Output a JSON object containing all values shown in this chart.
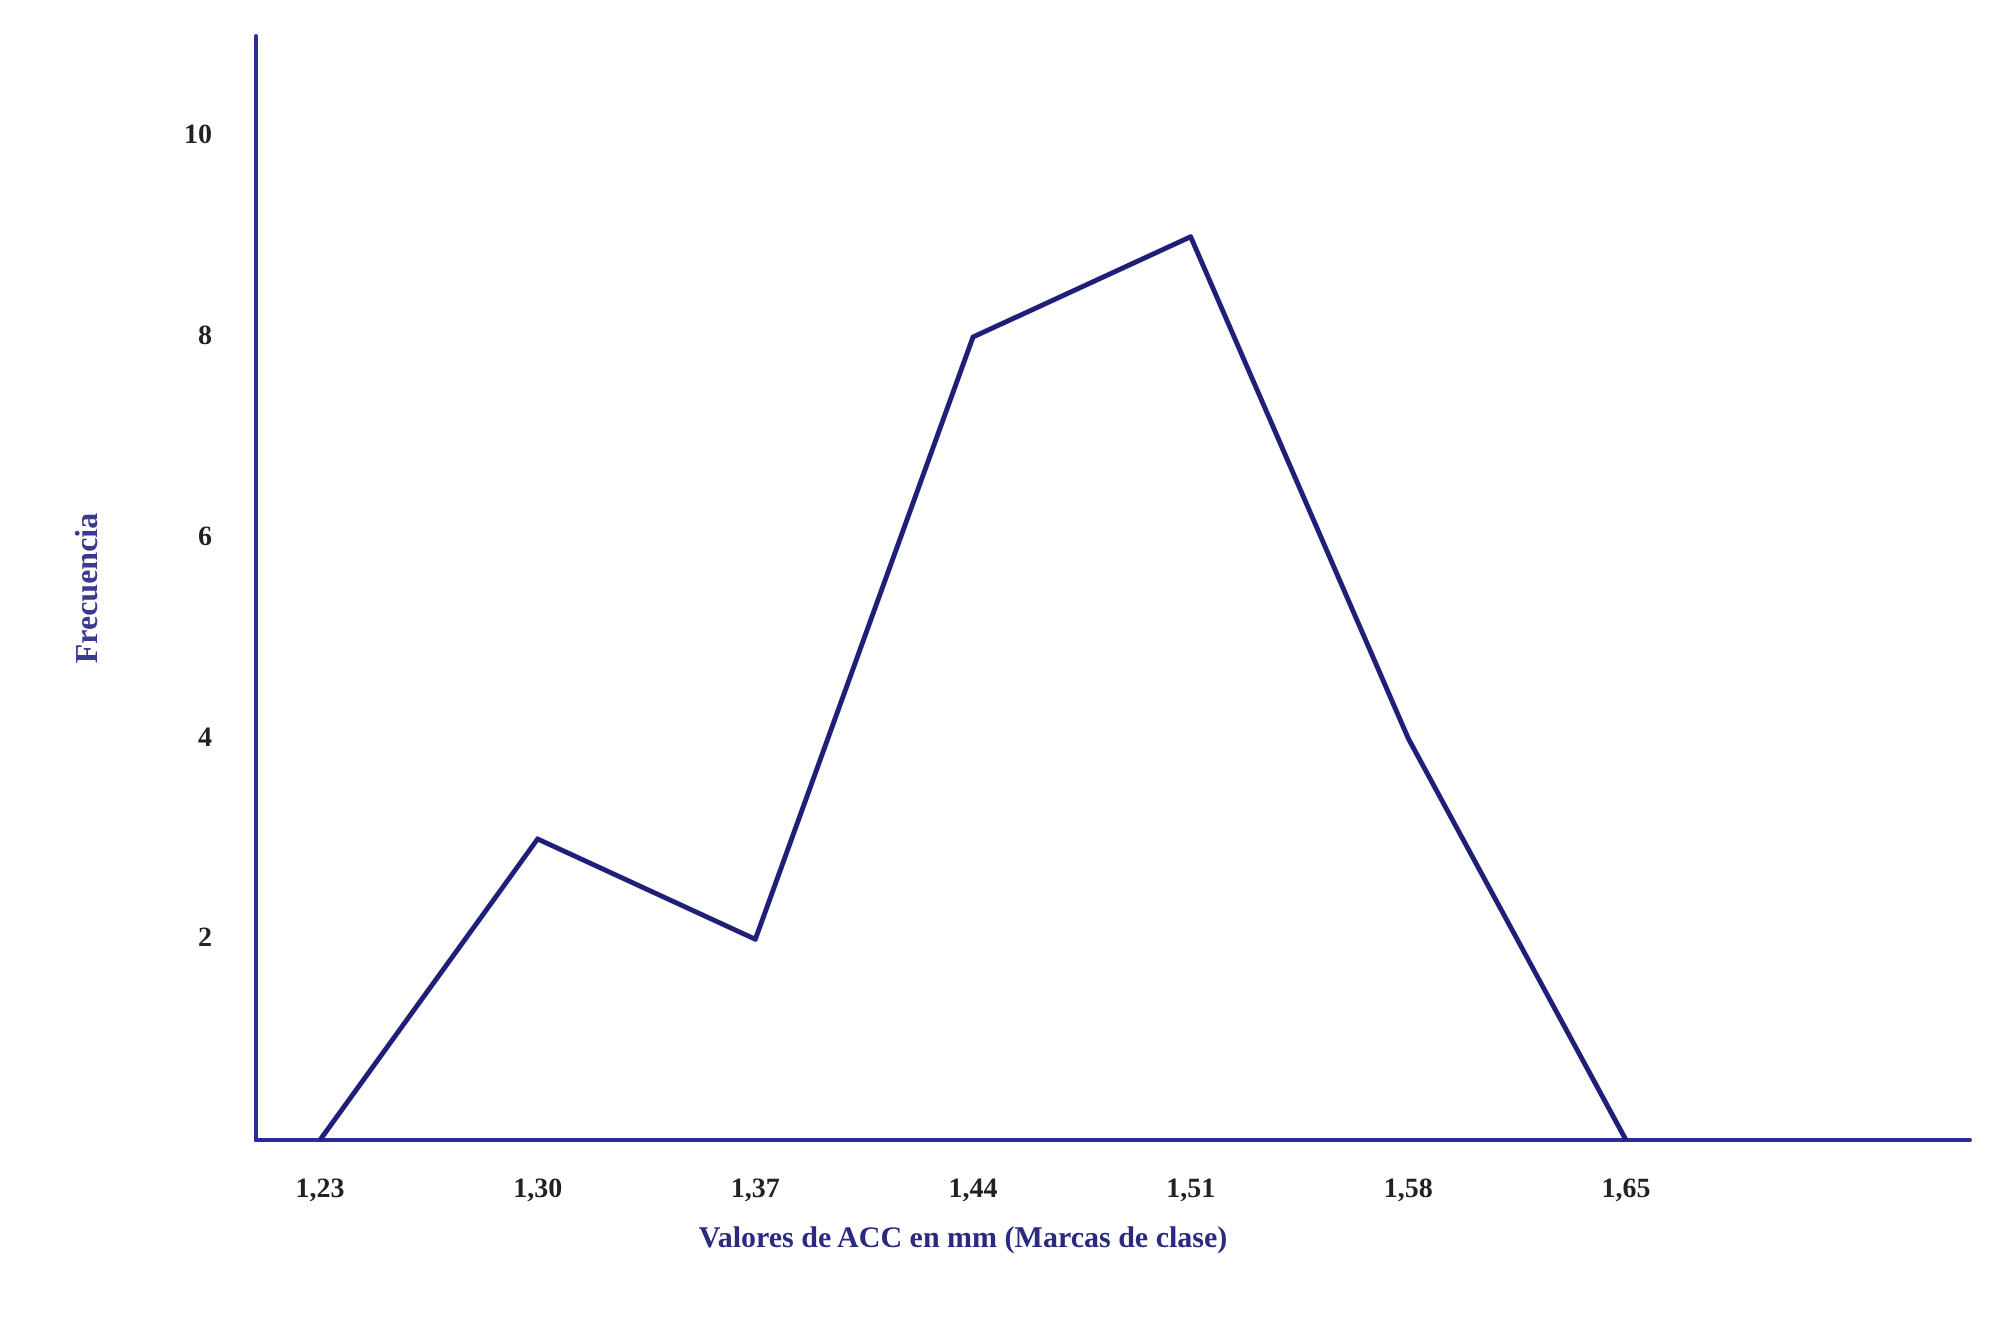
{
  "chart_data": {
    "type": "line",
    "xlabel": "Valores de ACC en mm (Marcas de clase)",
    "ylabel": "Frecuencia",
    "categories": [
      "1,23",
      "1,30",
      "1,37",
      "1,44",
      "1,51",
      "1,58",
      "1,65"
    ],
    "series": [
      {
        "color": "#1f1f78",
        "values": [
          0,
          3,
          2,
          8,
          9,
          4,
          0
        ]
      }
    ],
    "ylim": [
      0,
      11
    ],
    "yticks": [
      2,
      4,
      6,
      8,
      10
    ],
    "grid": false,
    "marker": "none",
    "line_style": "solid"
  }
}
